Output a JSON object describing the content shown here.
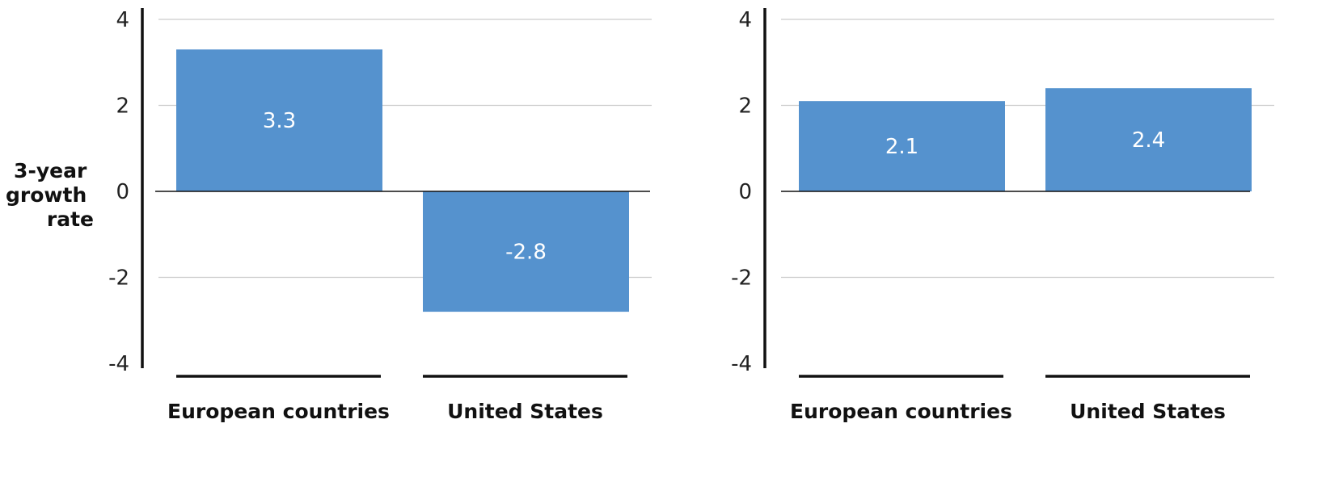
{
  "chart_data": [
    {
      "type": "bar",
      "title": "",
      "xlabel": "",
      "ylabel": "3-year growth rate",
      "ylim": [
        -4,
        4
      ],
      "yticks": [
        4,
        2,
        0,
        -2,
        -4
      ],
      "grid": true,
      "categories": [
        "European countries",
        "United States"
      ],
      "values": [
        3.3,
        -2.8
      ],
      "data_labels": [
        "3.3",
        "-2.8"
      ]
    },
    {
      "type": "bar",
      "title": "",
      "xlabel": "",
      "ylabel": "",
      "ylim": [
        -4,
        4
      ],
      "yticks": [
        4,
        2,
        0,
        -2,
        -4
      ],
      "grid": true,
      "categories": [
        "European countries",
        "United States"
      ],
      "values": [
        2.1,
        2.4
      ],
      "data_labels": [
        "2.1",
        "2.4"
      ]
    }
  ],
  "ylabel_lines": [
    "3-year",
    "growth",
    "rate"
  ],
  "colors": {
    "bar": "#5592ce",
    "grid": "#cccccc",
    "axis": "#111111"
  }
}
